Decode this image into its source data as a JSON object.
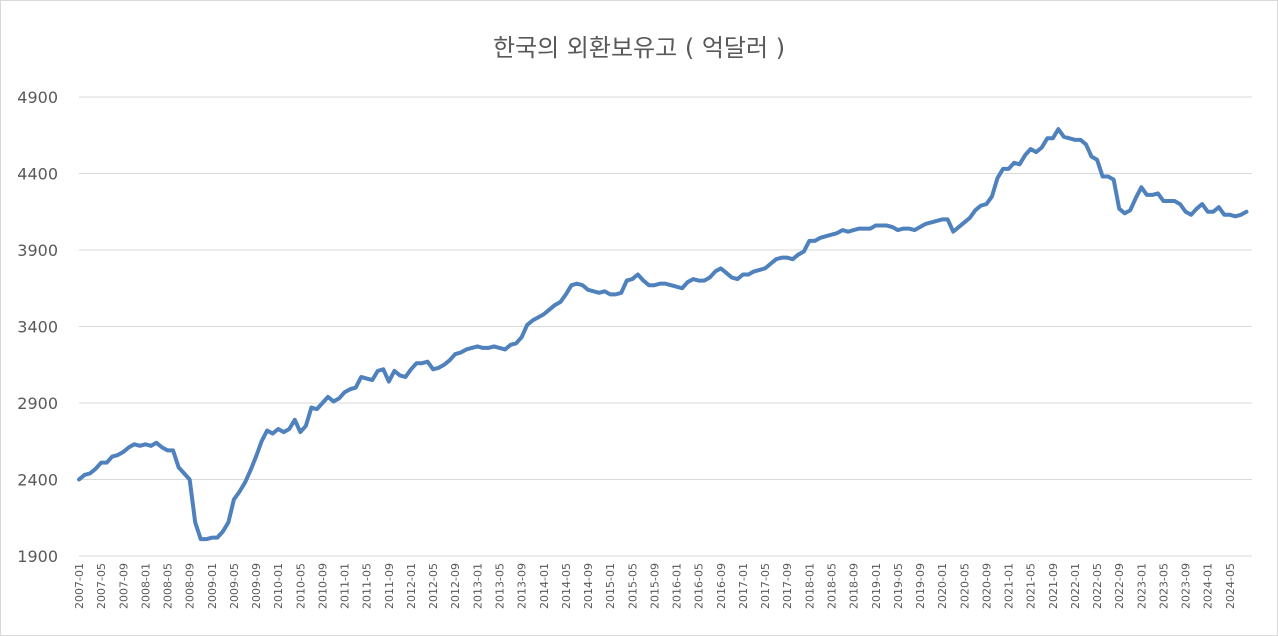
{
  "chart_data": {
    "type": "line",
    "title": "한국의 외환보유고 ( 억달러 )",
    "xlabel": "",
    "ylabel": "",
    "ylim": [
      1900,
      4900
    ],
    "yticks": [
      1900,
      2400,
      2900,
      3400,
      3900,
      4400,
      4900
    ],
    "grid": true,
    "legend": "none",
    "colors": {
      "series": "#4f81bd",
      "grid": "#d9d9d9",
      "text": "#595959"
    },
    "x_tick_labels": [
      "2007-01",
      "2007-05",
      "2007-09",
      "2008-01",
      "2008-05",
      "2008-09",
      "2009-01",
      "2009-05",
      "2009-09",
      "2010-01",
      "2010-05",
      "2010-09",
      "2011-01",
      "2011-05",
      "2011-09",
      "2012-01",
      "2012-05",
      "2012-09",
      "2013-01",
      "2013-05",
      "2013-09",
      "2014-01",
      "2014-05",
      "2014-09",
      "2015-01",
      "2015-05",
      "2015-09",
      "2016-01",
      "2016-05",
      "2016-09",
      "2017-01",
      "2017-05",
      "2017-09",
      "2018-01",
      "2018-05",
      "2018-09",
      "2019-01",
      "2019-05",
      "2019-09",
      "2020-01",
      "2020-05",
      "2020-09",
      "2021-01",
      "2021-05",
      "2021-09",
      "2022-01",
      "2022-05",
      "2022-09",
      "2023-01",
      "2023-05",
      "2023-09",
      "2024-01",
      "2024-05"
    ],
    "series": [
      {
        "start": "2007-01",
        "values": [
          2400,
          2430,
          2440,
          2470,
          2510,
          2510,
          2550,
          2560,
          2580,
          2610,
          2630,
          2620,
          2630,
          2620,
          2640,
          2610,
          2590,
          2590,
          2480,
          2440,
          2400,
          2120,
          2010,
          2010,
          2020,
          2020,
          2060,
          2120,
          2270,
          2320,
          2380,
          2460,
          2550,
          2650,
          2720,
          2700,
          2730,
          2710,
          2730,
          2790,
          2710,
          2750,
          2870,
          2860,
          2900,
          2940,
          2910,
          2930,
          2970,
          2990,
          3000,
          3070,
          3060,
          3050,
          3110,
          3120,
          3040,
          3110,
          3080,
          3070,
          3120,
          3160,
          3160,
          3170,
          3120,
          3130,
          3150,
          3180,
          3220,
          3230,
          3250,
          3260,
          3270,
          3260,
          3260,
          3270,
          3260,
          3250,
          3280,
          3290,
          3330,
          3410,
          3440,
          3460,
          3480,
          3510,
          3540,
          3560,
          3610,
          3670,
          3680,
          3670,
          3640,
          3630,
          3620,
          3630,
          3610,
          3610,
          3620,
          3700,
          3710,
          3740,
          3700,
          3670,
          3670,
          3680,
          3680,
          3670,
          3660,
          3650,
          3690,
          3710,
          3700,
          3700,
          3720,
          3760,
          3780,
          3750,
          3720,
          3710,
          3740,
          3740,
          3760,
          3770,
          3780,
          3810,
          3840,
          3850,
          3850,
          3840,
          3870,
          3890,
          3960,
          3960,
          3980,
          3990,
          4000,
          4010,
          4030,
          4020,
          4030,
          4040,
          4040,
          4040,
          4060,
          4060,
          4060,
          4050,
          4030,
          4040,
          4040,
          4030,
          4050,
          4070,
          4080,
          4090,
          4100,
          4100,
          4020,
          4050,
          4080,
          4110,
          4160,
          4190,
          4200,
          4250,
          4370,
          4430,
          4430,
          4470,
          4460,
          4520,
          4560,
          4540,
          4570,
          4630,
          4630,
          4690,
          4640,
          4630,
          4620,
          4620,
          4590,
          4510,
          4490,
          4380,
          4380,
          4360,
          4170,
          4140,
          4160,
          4240,
          4310,
          4260,
          4260,
          4270,
          4220,
          4220,
          4220,
          4200,
          4150,
          4130,
          4170,
          4200,
          4150,
          4150,
          4180,
          4130,
          4130,
          4120,
          4130,
          4150
        ]
      }
    ]
  }
}
